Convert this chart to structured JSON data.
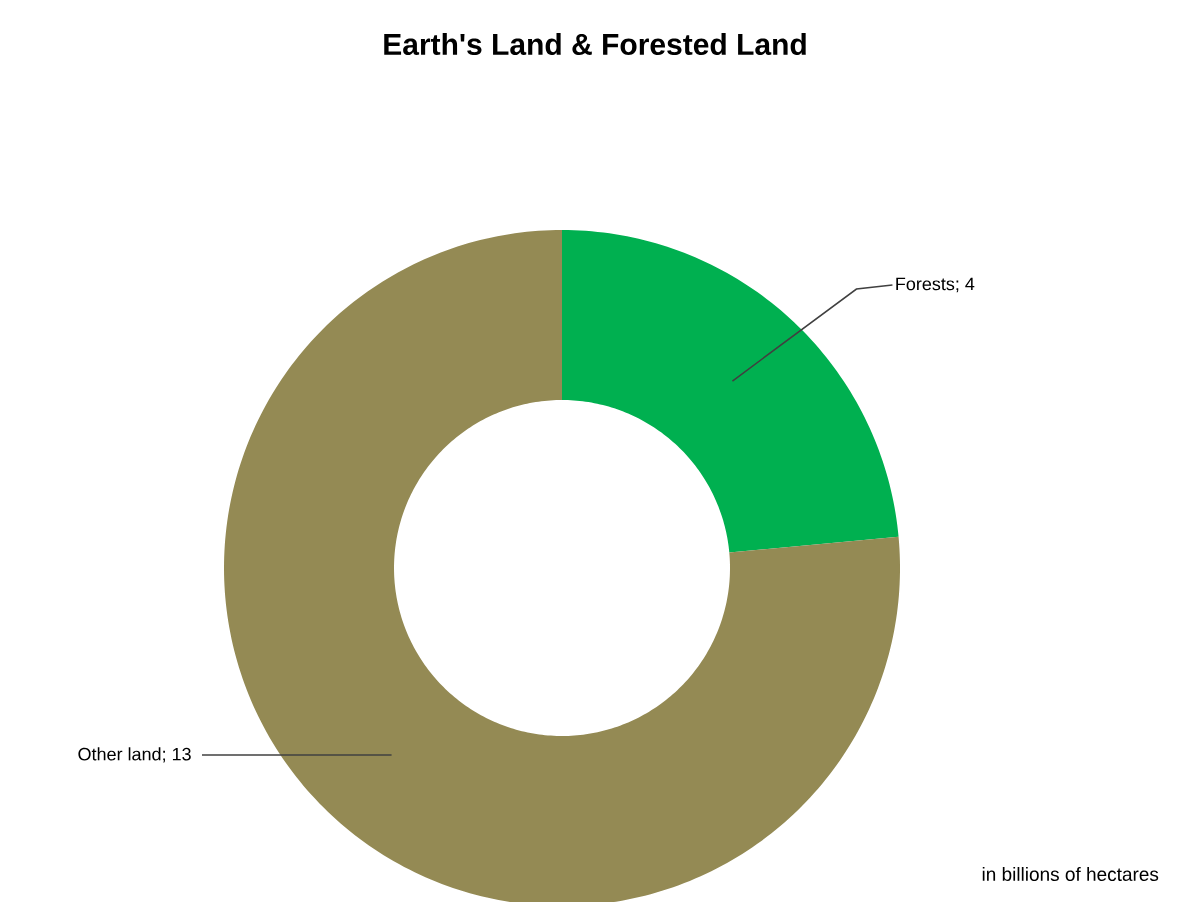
{
  "chart_data": {
    "type": "donut",
    "title": "Earth's Land & Forested Land",
    "categories": [
      "Forests",
      "Other land"
    ],
    "values": [
      4,
      13
    ],
    "colors": [
      "#00b050",
      "#948a54"
    ],
    "value_labels": [
      "; 4",
      "; 13"
    ],
    "legend": false,
    "annotations": [
      "in billions of hectares"
    ]
  }
}
